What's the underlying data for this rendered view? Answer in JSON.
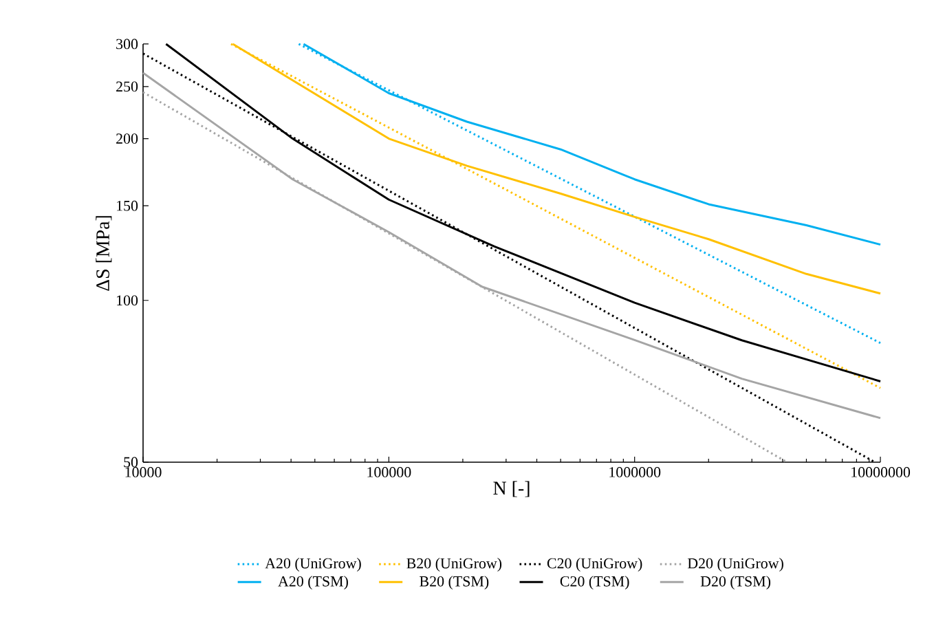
{
  "chart_data": {
    "type": "line",
    "xlabel": "N [-]",
    "ylabel": "ΔS [MPa]",
    "log": "xy",
    "grid": false,
    "legend": "bottom",
    "xlim": [
      10000,
      10000000
    ],
    "xticks": [
      10000,
      100000,
      1000000,
      10000000
    ],
    "ylim": [
      50,
      300
    ],
    "yticks": [
      50,
      100,
      150,
      200,
      250,
      300
    ],
    "series": [
      {
        "name": "A20 (UniGrow)",
        "color": "#00b0f0",
        "line_style": "dotted",
        "x": [
          43000,
          10000000
        ],
        "values": [
          300,
          83.3
        ]
      },
      {
        "name": "B20 (UniGrow)",
        "color": "#ffc000",
        "line_style": "dotted",
        "x": [
          22800,
          10000000
        ],
        "values": [
          300,
          68.7
        ]
      },
      {
        "name": "C20 (UniGrow)",
        "color": "#000000",
        "line_style": "dotted",
        "x": [
          10000,
          9500000
        ],
        "values": [
          288,
          50
        ]
      },
      {
        "name": "D20 (UniGrow)",
        "color": "#a5a5a5",
        "line_style": "dotted",
        "x": [
          10000,
          4170000
        ],
        "values": [
          244,
          50
        ]
      },
      {
        "name": "A20 (TSM)",
        "color": "#00b0f0",
        "line_style": "solid",
        "x": [
          45000,
          100000,
          208000,
          500000,
          1000000,
          2000000,
          5000000,
          10000000
        ],
        "values": [
          300,
          243,
          215,
          191,
          168,
          151,
          138,
          127
        ]
      },
      {
        "name": "B20 (TSM)",
        "color": "#ffc000",
        "line_style": "solid",
        "x": [
          23200,
          100000,
          208000,
          500000,
          1000000,
          2000000,
          5000000,
          10000000
        ],
        "values": [
          300,
          200,
          178,
          158,
          143,
          130,
          112,
          103
        ]
      },
      {
        "name": "C20 (TSM)",
        "color": "#000000",
        "line_style": "solid",
        "x": [
          12400,
          40600,
          100000,
          269000,
          1000000,
          2730000,
          10000000
        ],
        "values": [
          300,
          200,
          154,
          126,
          99,
          84.3,
          70.7
        ]
      },
      {
        "name": "D20 (TSM)",
        "color": "#a5a5a5",
        "line_style": "solid",
        "x": [
          10000,
          40600,
          100000,
          240000,
          1000000,
          2730000,
          10000000
        ],
        "values": [
          265,
          168,
          134,
          106,
          84.4,
          71.5,
          60.4
        ]
      }
    ]
  }
}
